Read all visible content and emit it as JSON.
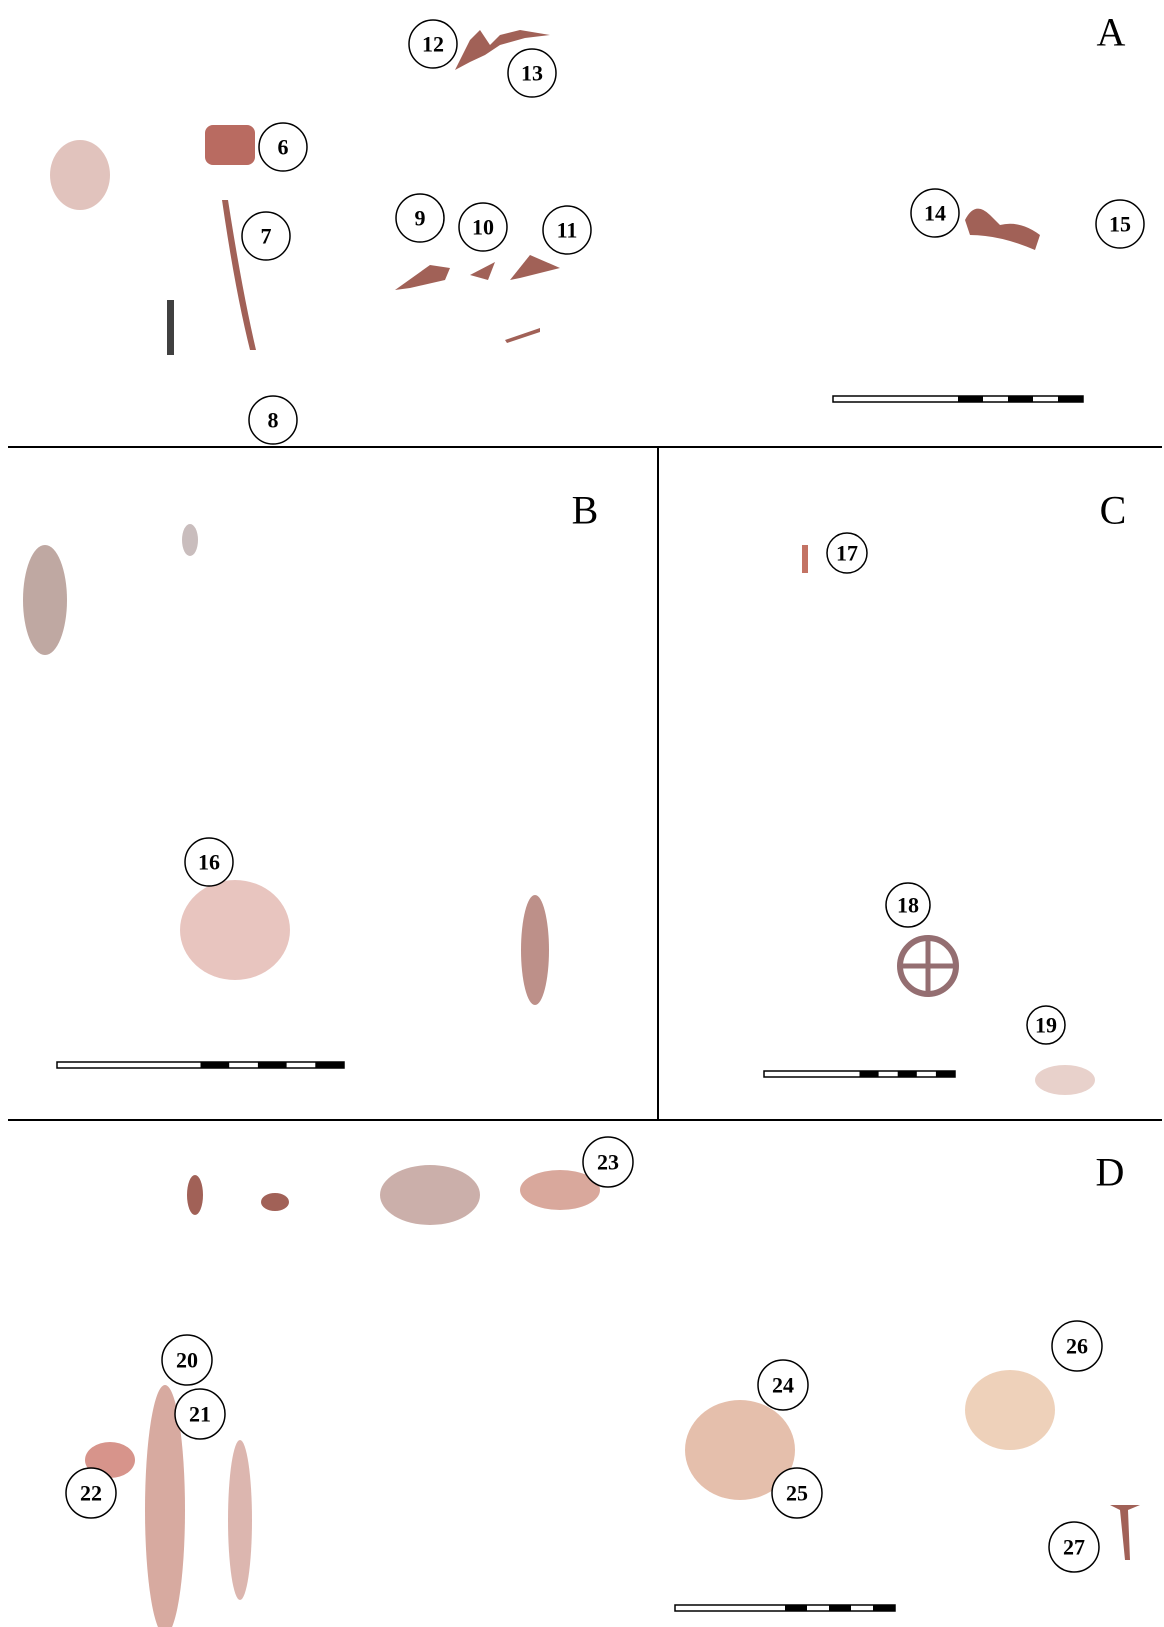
{
  "panels": [
    {
      "label": "A",
      "markers": [
        "12",
        "13",
        "6",
        "7",
        "8",
        "9",
        "10",
        "11",
        "14",
        "15"
      ]
    },
    {
      "label": "B",
      "markers": [
        "16"
      ]
    },
    {
      "label": "C",
      "markers": [
        "17",
        "18",
        "19"
      ]
    },
    {
      "label": "D",
      "markers": [
        "23",
        "20",
        "21",
        "22",
        "24",
        "25",
        "26",
        "27"
      ]
    }
  ]
}
